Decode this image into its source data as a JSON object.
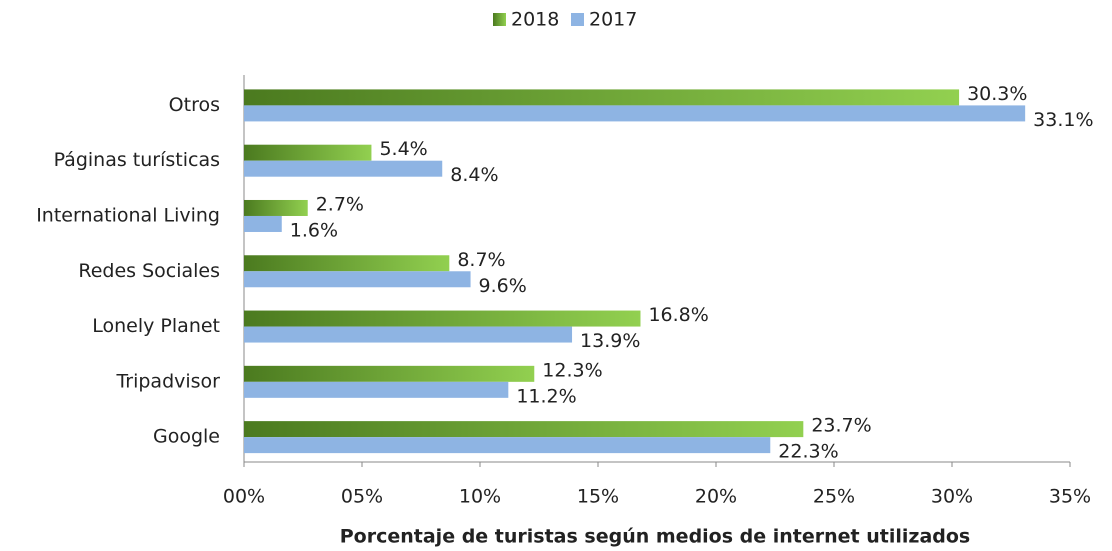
{
  "chart_data": {
    "type": "hbar",
    "xlabel": "Porcentaje de turistas según medios de internet utilizados",
    "categories": [
      "Otros",
      "Páginas turísticas",
      "International Living",
      "Redes Sociales",
      "Lonely Planet",
      "Tripadvisor",
      "Google"
    ],
    "series": [
      {
        "name": "2018",
        "color": "#92d050",
        "values": [
          30.3,
          5.4,
          2.7,
          8.7,
          16.8,
          12.3,
          23.7
        ],
        "value_labels": [
          "30.3%",
          "5.4%",
          "2.7%",
          "8.7%",
          "16.8%",
          "12.3%",
          "23.7%"
        ]
      },
      {
        "name": "2017",
        "color": "#8eb4e3",
        "values": [
          33.1,
          8.4,
          1.6,
          9.6,
          13.9,
          11.2,
          22.3
        ],
        "value_labels": [
          "33.1%",
          "8.4%",
          "1.6%",
          "9.6%",
          "13.9%",
          "11.2%",
          "22.3%"
        ]
      }
    ],
    "xlim": [
      0,
      35
    ],
    "xticks": [
      {
        "value": 0,
        "label": "00%"
      },
      {
        "value": 5,
        "label": "05%"
      },
      {
        "value": 10,
        "label": "10%"
      },
      {
        "value": 15,
        "label": "15%"
      },
      {
        "value": 20,
        "label": "20%"
      },
      {
        "value": 25,
        "label": "25%"
      },
      {
        "value": 30,
        "label": "30%"
      },
      {
        "value": 35,
        "label": "35%"
      }
    ],
    "legend": "top"
  }
}
